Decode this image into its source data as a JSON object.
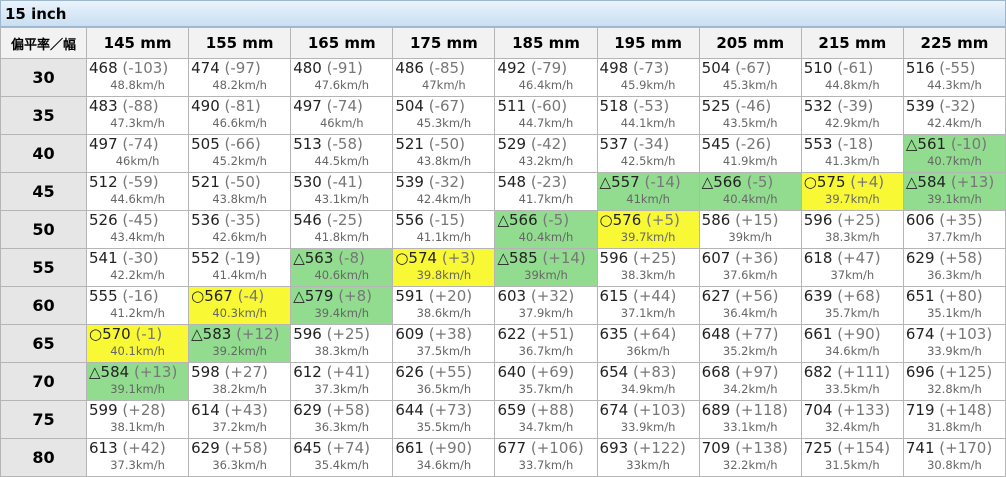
{
  "title": "15 inch",
  "header": {
    "corner": "偏平率／幅",
    "columns": [
      "145 mm",
      "155 mm",
      "165 mm",
      "175 mm",
      "185 mm",
      "195 mm",
      "205 mm",
      "215 mm",
      "225 mm"
    ]
  },
  "colors": {
    "yellow": "#f8f834",
    "green": "#92dc90"
  },
  "rows": [
    {
      "label": "30",
      "cells": [
        {
          "v": "468",
          "d": "(-103)",
          "s": "48.8km/h"
        },
        {
          "v": "474",
          "d": "(-97)",
          "s": "48.2km/h"
        },
        {
          "v": "480",
          "d": "(-91)",
          "s": "47.6km/h"
        },
        {
          "v": "486",
          "d": "(-85)",
          "s": "47km/h"
        },
        {
          "v": "492",
          "d": "(-79)",
          "s": "46.4km/h"
        },
        {
          "v": "498",
          "d": "(-73)",
          "s": "45.9km/h"
        },
        {
          "v": "504",
          "d": "(-67)",
          "s": "45.3km/h"
        },
        {
          "v": "510",
          "d": "(-61)",
          "s": "44.8km/h"
        },
        {
          "v": "516",
          "d": "(-55)",
          "s": "44.3km/h"
        }
      ]
    },
    {
      "label": "35",
      "cells": [
        {
          "v": "483",
          "d": "(-88)",
          "s": "47.3km/h"
        },
        {
          "v": "490",
          "d": "(-81)",
          "s": "46.6km/h"
        },
        {
          "v": "497",
          "d": "(-74)",
          "s": "46km/h"
        },
        {
          "v": "504",
          "d": "(-67)",
          "s": "45.3km/h"
        },
        {
          "v": "511",
          "d": "(-60)",
          "s": "44.7km/h"
        },
        {
          "v": "518",
          "d": "(-53)",
          "s": "44.1km/h"
        },
        {
          "v": "525",
          "d": "(-46)",
          "s": "43.5km/h"
        },
        {
          "v": "532",
          "d": "(-39)",
          "s": "42.9km/h"
        },
        {
          "v": "539",
          "d": "(-32)",
          "s": "42.4km/h"
        }
      ]
    },
    {
      "label": "40",
      "cells": [
        {
          "v": "497",
          "d": "(-74)",
          "s": "46km/h"
        },
        {
          "v": "505",
          "d": "(-66)",
          "s": "45.2km/h"
        },
        {
          "v": "513",
          "d": "(-58)",
          "s": "44.5km/h"
        },
        {
          "v": "521",
          "d": "(-50)",
          "s": "43.8km/h"
        },
        {
          "v": "529",
          "d": "(-42)",
          "s": "43.2km/h"
        },
        {
          "v": "537",
          "d": "(-34)",
          "s": "42.5km/h"
        },
        {
          "v": "545",
          "d": "(-26)",
          "s": "41.9km/h"
        },
        {
          "v": "553",
          "d": "(-18)",
          "s": "41.3km/h"
        },
        {
          "m": "△",
          "v": "561",
          "d": "(-10)",
          "s": "40.7km/h",
          "bg": "green"
        }
      ]
    },
    {
      "label": "45",
      "cells": [
        {
          "v": "512",
          "d": "(-59)",
          "s": "44.6km/h"
        },
        {
          "v": "521",
          "d": "(-50)",
          "s": "43.8km/h"
        },
        {
          "v": "530",
          "d": "(-41)",
          "s": "43.1km/h"
        },
        {
          "v": "539",
          "d": "(-32)",
          "s": "42.4km/h"
        },
        {
          "v": "548",
          "d": "(-23)",
          "s": "41.7km/h"
        },
        {
          "m": "△",
          "v": "557",
          "d": "(-14)",
          "s": "41km/h",
          "bg": "green"
        },
        {
          "m": "△",
          "v": "566",
          "d": "(-5)",
          "s": "40.4km/h",
          "bg": "green"
        },
        {
          "m": "○",
          "v": "575",
          "d": "(+4)",
          "s": "39.7km/h",
          "bg": "yellow"
        },
        {
          "m": "△",
          "v": "584",
          "d": "(+13)",
          "s": "39.1km/h",
          "bg": "green"
        }
      ]
    },
    {
      "label": "50",
      "cells": [
        {
          "v": "526",
          "d": "(-45)",
          "s": "43.4km/h"
        },
        {
          "v": "536",
          "d": "(-35)",
          "s": "42.6km/h"
        },
        {
          "v": "546",
          "d": "(-25)",
          "s": "41.8km/h"
        },
        {
          "v": "556",
          "d": "(-15)",
          "s": "41.1km/h"
        },
        {
          "m": "△",
          "v": "566",
          "d": "(-5)",
          "s": "40.4km/h",
          "bg": "green"
        },
        {
          "m": "○",
          "v": "576",
          "d": "(+5)",
          "s": "39.7km/h",
          "bg": "yellow"
        },
        {
          "v": "586",
          "d": "(+15)",
          "s": "39km/h"
        },
        {
          "v": "596",
          "d": "(+25)",
          "s": "38.3km/h"
        },
        {
          "v": "606",
          "d": "(+35)",
          "s": "37.7km/h"
        }
      ]
    },
    {
      "label": "55",
      "cells": [
        {
          "v": "541",
          "d": "(-30)",
          "s": "42.2km/h"
        },
        {
          "v": "552",
          "d": "(-19)",
          "s": "41.4km/h"
        },
        {
          "m": "△",
          "v": "563",
          "d": "(-8)",
          "s": "40.6km/h",
          "bg": "green"
        },
        {
          "m": "○",
          "v": "574",
          "d": "(+3)",
          "s": "39.8km/h",
          "bg": "yellow"
        },
        {
          "m": "△",
          "v": "585",
          "d": "(+14)",
          "s": "39km/h",
          "bg": "green"
        },
        {
          "v": "596",
          "d": "(+25)",
          "s": "38.3km/h"
        },
        {
          "v": "607",
          "d": "(+36)",
          "s": "37.6km/h"
        },
        {
          "v": "618",
          "d": "(+47)",
          "s": "37km/h"
        },
        {
          "v": "629",
          "d": "(+58)",
          "s": "36.3km/h"
        }
      ]
    },
    {
      "label": "60",
      "cells": [
        {
          "v": "555",
          "d": "(-16)",
          "s": "41.2km/h"
        },
        {
          "m": "○",
          "v": "567",
          "d": "(-4)",
          "s": "40.3km/h",
          "bg": "yellow"
        },
        {
          "m": "△",
          "v": "579",
          "d": "(+8)",
          "s": "39.4km/h",
          "bg": "green"
        },
        {
          "v": "591",
          "d": "(+20)",
          "s": "38.6km/h"
        },
        {
          "v": "603",
          "d": "(+32)",
          "s": "37.9km/h"
        },
        {
          "v": "615",
          "d": "(+44)",
          "s": "37.1km/h"
        },
        {
          "v": "627",
          "d": "(+56)",
          "s": "36.4km/h"
        },
        {
          "v": "639",
          "d": "(+68)",
          "s": "35.7km/h"
        },
        {
          "v": "651",
          "d": "(+80)",
          "s": "35.1km/h"
        }
      ]
    },
    {
      "label": "65",
      "cells": [
        {
          "m": "○",
          "v": "570",
          "d": "(-1)",
          "s": "40.1km/h",
          "bg": "yellow"
        },
        {
          "m": "△",
          "v": "583",
          "d": "(+12)",
          "s": "39.2km/h",
          "bg": "green"
        },
        {
          "v": "596",
          "d": "(+25)",
          "s": "38.3km/h"
        },
        {
          "v": "609",
          "d": "(+38)",
          "s": "37.5km/h"
        },
        {
          "v": "622",
          "d": "(+51)",
          "s": "36.7km/h"
        },
        {
          "v": "635",
          "d": "(+64)",
          "s": "36km/h"
        },
        {
          "v": "648",
          "d": "(+77)",
          "s": "35.2km/h"
        },
        {
          "v": "661",
          "d": "(+90)",
          "s": "34.6km/h"
        },
        {
          "v": "674",
          "d": "(+103)",
          "s": "33.9km/h"
        }
      ]
    },
    {
      "label": "70",
      "cells": [
        {
          "m": "△",
          "v": "584",
          "d": "(+13)",
          "s": "39.1km/h",
          "bg": "green"
        },
        {
          "v": "598",
          "d": "(+27)",
          "s": "38.2km/h"
        },
        {
          "v": "612",
          "d": "(+41)",
          "s": "37.3km/h"
        },
        {
          "v": "626",
          "d": "(+55)",
          "s": "36.5km/h"
        },
        {
          "v": "640",
          "d": "(+69)",
          "s": "35.7km/h"
        },
        {
          "v": "654",
          "d": "(+83)",
          "s": "34.9km/h"
        },
        {
          "v": "668",
          "d": "(+97)",
          "s": "34.2km/h"
        },
        {
          "v": "682",
          "d": "(+111)",
          "s": "33.5km/h"
        },
        {
          "v": "696",
          "d": "(+125)",
          "s": "32.8km/h"
        }
      ]
    },
    {
      "label": "75",
      "cells": [
        {
          "v": "599",
          "d": "(+28)",
          "s": "38.1km/h"
        },
        {
          "v": "614",
          "d": "(+43)",
          "s": "37.2km/h"
        },
        {
          "v": "629",
          "d": "(+58)",
          "s": "36.3km/h"
        },
        {
          "v": "644",
          "d": "(+73)",
          "s": "35.5km/h"
        },
        {
          "v": "659",
          "d": "(+88)",
          "s": "34.7km/h"
        },
        {
          "v": "674",
          "d": "(+103)",
          "s": "33.9km/h"
        },
        {
          "v": "689",
          "d": "(+118)",
          "s": "33.1km/h"
        },
        {
          "v": "704",
          "d": "(+133)",
          "s": "32.4km/h"
        },
        {
          "v": "719",
          "d": "(+148)",
          "s": "31.8km/h"
        }
      ]
    },
    {
      "label": "80",
      "cells": [
        {
          "v": "613",
          "d": "(+42)",
          "s": "37.3km/h"
        },
        {
          "v": "629",
          "d": "(+58)",
          "s": "36.3km/h"
        },
        {
          "v": "645",
          "d": "(+74)",
          "s": "35.4km/h"
        },
        {
          "v": "661",
          "d": "(+90)",
          "s": "34.6km/h"
        },
        {
          "v": "677",
          "d": "(+106)",
          "s": "33.7km/h"
        },
        {
          "v": "693",
          "d": "(+122)",
          "s": "33km/h"
        },
        {
          "v": "709",
          "d": "(+138)",
          "s": "32.2km/h"
        },
        {
          "v": "725",
          "d": "(+154)",
          "s": "31.5km/h"
        },
        {
          "v": "741",
          "d": "(+170)",
          "s": "30.8km/h"
        }
      ]
    }
  ]
}
